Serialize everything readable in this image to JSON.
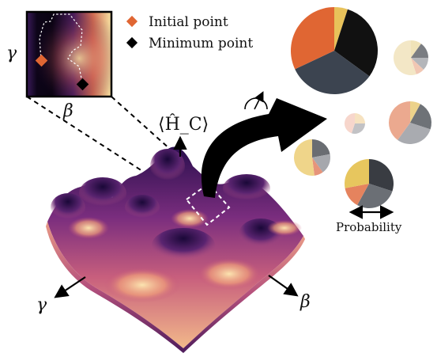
{
  "colors": {
    "initial_point": "#e06633",
    "minimum_point": "#000000",
    "surface_dark": "#1a0a3a",
    "surface_mid": "#b5488a",
    "surface_light": "#f7d9a6"
  },
  "heatmap": {
    "y_label": "γ",
    "x_label": "β"
  },
  "legend": {
    "initial_label": "Initial point",
    "minimum_label": "Minimum point"
  },
  "surface": {
    "axis_label": "⟨Ĥ_C⟩",
    "gamma_label": "γ",
    "beta_label": "β"
  },
  "measurement": {
    "icon": "measurement-meter-icon"
  },
  "pies": {
    "probability_label": "Probability",
    "items": [
      {
        "slices": [
          {
            "value": 0.05,
            "color": "#e8c25a"
          },
          {
            "value": 0.3,
            "color": "#111111"
          },
          {
            "value": 0.33,
            "color": "#3c4450"
          },
          {
            "value": 0.32,
            "color": "#e06633"
          }
        ]
      },
      {
        "slices": [
          {
            "value": 0.1,
            "color": "#f0e3b8"
          },
          {
            "value": 0.15,
            "color": "#7a7d82"
          },
          {
            "value": 0.12,
            "color": "#b4b6ba"
          },
          {
            "value": 0.08,
            "color": "#f1c7b3"
          },
          {
            "value": 0.55,
            "color": "#f3e7c6"
          }
        ]
      },
      {
        "slices": [
          {
            "value": 0.25,
            "color": "#f6e2c0"
          },
          {
            "value": 0.3,
            "color": "#c2c2c5"
          },
          {
            "value": 0.45,
            "color": "#f7d6cc"
          }
        ]
      },
      {
        "slices": [
          {
            "value": 0.08,
            "color": "#ecd28a"
          },
          {
            "value": 0.22,
            "color": "#6e7277"
          },
          {
            "value": 0.3,
            "color": "#a9abb0"
          },
          {
            "value": 0.4,
            "color": "#eba98f"
          }
        ]
      },
      {
        "slices": [
          {
            "value": 0.22,
            "color": "#6a6d72"
          },
          {
            "value": 0.18,
            "color": "#a6a8ad"
          },
          {
            "value": 0.08,
            "color": "#e6947a"
          },
          {
            "value": 0.52,
            "color": "#efd58a"
          }
        ]
      },
      {
        "slices": [
          {
            "value": 0.3,
            "color": "#393c42"
          },
          {
            "value": 0.28,
            "color": "#6b6f75"
          },
          {
            "value": 0.14,
            "color": "#e5835e"
          },
          {
            "value": 0.28,
            "color": "#e7c65e"
          }
        ]
      }
    ]
  }
}
